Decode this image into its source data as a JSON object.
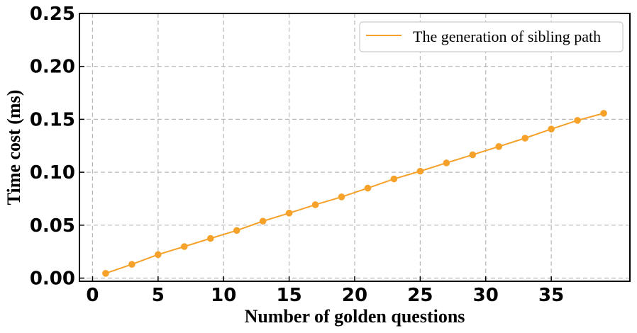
{
  "chart_data": {
    "type": "line",
    "xlabel": "Number of golden questions",
    "ylabel": "Time cost (ms)",
    "xlim": [
      -1,
      41
    ],
    "ylim": [
      -0.003,
      0.25
    ],
    "x_ticks": [
      0,
      5,
      10,
      15,
      20,
      25,
      30,
      35
    ],
    "y_ticks": [
      "0.00",
      "0.05",
      "0.10",
      "0.15",
      "0.20",
      "0.25"
    ],
    "grid": true,
    "legend_position": "top-right",
    "series": [
      {
        "name": "The generation of sibling path",
        "color": "#f5a12a",
        "x": [
          1,
          3,
          5,
          7,
          9,
          11,
          13,
          15,
          17,
          19,
          21,
          23,
          25,
          27,
          29,
          31,
          33,
          35,
          37,
          39
        ],
        "y": [
          0.0045,
          0.013,
          0.0222,
          0.0298,
          0.0375,
          0.045,
          0.0538,
          0.0614,
          0.0693,
          0.0767,
          0.085,
          0.0937,
          0.101,
          0.1088,
          0.1165,
          0.1243,
          0.1322,
          0.1408,
          0.149,
          0.1557
        ]
      }
    ]
  }
}
